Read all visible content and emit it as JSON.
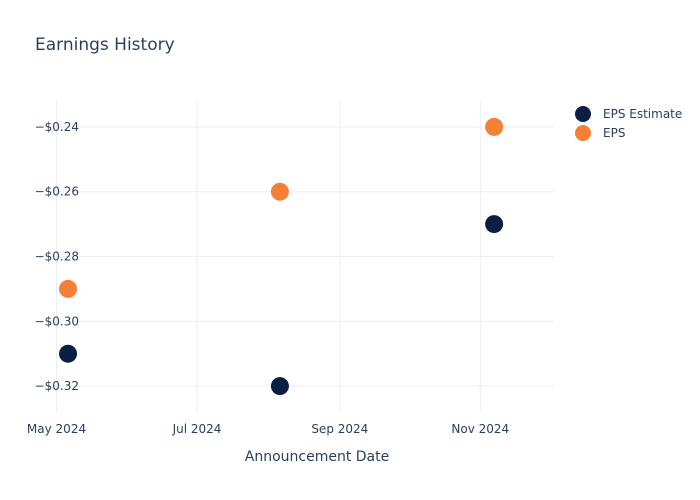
{
  "chart_data": {
    "type": "scatter",
    "title": "Earnings History",
    "xlabel": "Announcement Date",
    "ylabel": "",
    "x_ticks": [
      "May 2024",
      "Jul 2024",
      "Sep 2024",
      "Nov 2024"
    ],
    "y_ticks": [
      "−$0.24",
      "−$0.26",
      "−$0.28",
      "−$0.30",
      "−$0.32"
    ],
    "xlim": [
      "2024-04-26",
      "2024-12-03"
    ],
    "ylim": [
      -0.3283,
      -0.2317
    ],
    "grid": true,
    "legend_position": "top-right",
    "series": [
      {
        "name": "EPS Estimate",
        "color": "#0b1f44",
        "points": [
          {
            "x": "2024-05-06",
            "y": -0.31
          },
          {
            "x": "2024-08-06",
            "y": -0.32
          },
          {
            "x": "2024-11-07",
            "y": -0.27
          }
        ]
      },
      {
        "name": "EPS",
        "color": "#f38036",
        "points": [
          {
            "x": "2024-05-06",
            "y": -0.29
          },
          {
            "x": "2024-08-06",
            "y": -0.26
          },
          {
            "x": "2024-11-07",
            "y": -0.24
          }
        ]
      }
    ]
  }
}
